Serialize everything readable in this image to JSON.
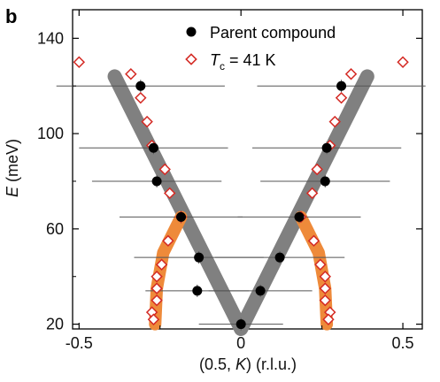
{
  "panel_label": "b",
  "colors": {
    "parent": "#000000",
    "tc": "#d42a24",
    "gray_band": "#808080",
    "orange_band": "#ee8a3a",
    "error_bar": "#555555"
  },
  "chart_data": {
    "type": "scatter",
    "xlabel_prefix": "(0.5, ",
    "xlabel_var": "K",
    "xlabel_suffix": ") (r.l.u.)",
    "ylabel_var": "E",
    "ylabel_unit": " (meV)",
    "xlim": [
      -0.52,
      0.56
    ],
    "ylim": [
      18,
      152
    ],
    "xticks": [
      -0.5,
      0,
      0.5
    ],
    "xtick_labels": [
      "-0.5",
      "0",
      "0.5"
    ],
    "yticks": [
      20,
      60,
      100,
      140
    ],
    "ytick_labels": [
      "20",
      "60",
      "100",
      "140"
    ],
    "legend": {
      "parent_label": "Parent compound",
      "tc_prefix": "T",
      "tc_sub": "c",
      "tc_suffix": " = 41 K"
    },
    "series": [
      {
        "name": "Parent compound",
        "marker": "filled-circle",
        "points": [
          {
            "x": 0,
            "y": 20,
            "xerr": 0.13
          },
          {
            "x": -0.135,
            "y": 34,
            "xerr": 0.16
          },
          {
            "x": 0.06,
            "y": 34,
            "xerr": 0.16
          },
          {
            "x": -0.13,
            "y": 48,
            "xerr": 0.2
          },
          {
            "x": 0.12,
            "y": 48,
            "xerr": 0.2
          },
          {
            "x": -0.185,
            "y": 65,
            "xerr": 0.19
          },
          {
            "x": 0.18,
            "y": 65,
            "xerr": 0.19
          },
          {
            "x": -0.26,
            "y": 80,
            "xerr": 0.2
          },
          {
            "x": 0.26,
            "y": 80,
            "xerr": 0.2
          },
          {
            "x": -0.27,
            "y": 94,
            "xerr": 0.23
          },
          {
            "x": 0.265,
            "y": 94,
            "xerr": 0.23
          },
          {
            "x": -0.31,
            "y": 120,
            "xerr": 0.26
          },
          {
            "x": 0.31,
            "y": 120,
            "xerr": 0.26
          }
        ]
      },
      {
        "name": "Tc = 41 K",
        "marker": "open-diamond",
        "points": [
          {
            "x": -0.5,
            "y": 130
          },
          {
            "x": 0.5,
            "y": 130
          },
          {
            "x": -0.34,
            "y": 125
          },
          {
            "x": 0.34,
            "y": 125
          },
          {
            "x": -0.31,
            "y": 115
          },
          {
            "x": 0.31,
            "y": 115
          },
          {
            "x": -0.29,
            "y": 105
          },
          {
            "x": 0.29,
            "y": 105
          },
          {
            "x": -0.275,
            "y": 95
          },
          {
            "x": 0.275,
            "y": 95
          },
          {
            "x": -0.235,
            "y": 85
          },
          {
            "x": 0.235,
            "y": 85
          },
          {
            "x": -0.22,
            "y": 75
          },
          {
            "x": 0.22,
            "y": 75
          },
          {
            "x": -0.185,
            "y": 65
          },
          {
            "x": 0.185,
            "y": 65
          },
          {
            "x": -0.225,
            "y": 55
          },
          {
            "x": 0.225,
            "y": 55
          },
          {
            "x": -0.245,
            "y": 45
          },
          {
            "x": 0.245,
            "y": 45
          },
          {
            "x": -0.26,
            "y": 40
          },
          {
            "x": 0.26,
            "y": 40
          },
          {
            "x": -0.26,
            "y": 35
          },
          {
            "x": 0.26,
            "y": 35
          },
          {
            "x": -0.26,
            "y": 30
          },
          {
            "x": 0.26,
            "y": 30
          },
          {
            "x": -0.275,
            "y": 25
          },
          {
            "x": 0.275,
            "y": 25
          },
          {
            "x": -0.27,
            "y": 22
          },
          {
            "x": 0.27,
            "y": 22
          }
        ]
      }
    ],
    "bands": [
      {
        "color": "gray",
        "points": [
          [
            -0.39,
            124
          ],
          [
            0,
            18
          ],
          [
            0.39,
            124
          ]
        ]
      },
      {
        "color": "orange",
        "points": [
          [
            -0.185,
            65
          ],
          [
            -0.24,
            50
          ],
          [
            -0.26,
            35
          ],
          [
            -0.265,
            20
          ]
        ]
      },
      {
        "color": "orange",
        "points": [
          [
            0.185,
            65
          ],
          [
            0.24,
            50
          ],
          [
            0.26,
            35
          ],
          [
            0.265,
            20
          ]
        ]
      }
    ]
  }
}
